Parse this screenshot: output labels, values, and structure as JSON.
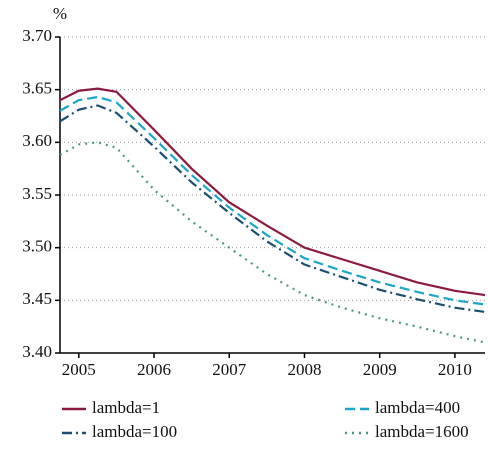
{
  "chart_data": {
    "type": "line",
    "y_label": "%",
    "x": [
      2004.75,
      2005,
      2005.25,
      2005.5,
      2006,
      2006.5,
      2007,
      2007.5,
      2008,
      2008.5,
      2009,
      2009.5,
      2010,
      2010.4
    ],
    "series": [
      {
        "name": "lambda=1",
        "color": "#8b1a3e",
        "dash": "solid",
        "values": [
          3.64,
          3.649,
          3.651,
          3.648,
          3.612,
          3.575,
          3.543,
          3.521,
          3.5,
          3.489,
          3.478,
          3.467,
          3.459,
          3.455
        ]
      },
      {
        "name": "lambda=400",
        "color": "#1ba6c9",
        "dash": "dash",
        "values": [
          3.63,
          3.64,
          3.643,
          3.638,
          3.604,
          3.569,
          3.538,
          3.512,
          3.49,
          3.478,
          3.467,
          3.458,
          3.45,
          3.446
        ]
      },
      {
        "name": "lambda=100",
        "color": "#1a4f70",
        "dash": "dashdot",
        "values": [
          3.62,
          3.631,
          3.635,
          3.628,
          3.596,
          3.562,
          3.533,
          3.506,
          3.484,
          3.472,
          3.46,
          3.451,
          3.443,
          3.439
        ]
      },
      {
        "name": "lambda=1600",
        "color": "#4a9a7c",
        "dash": "dot",
        "values": [
          3.588,
          3.598,
          3.6,
          3.595,
          3.555,
          3.525,
          3.5,
          3.475,
          3.455,
          3.443,
          3.433,
          3.425,
          3.416,
          3.41
        ]
      }
    ],
    "xlim": [
      2004.75,
      2010.4
    ],
    "xticks": [
      2005,
      2006,
      2007,
      2008,
      2009,
      2010
    ],
    "ylim": [
      3.4,
      3.7
    ],
    "yticks": [
      {
        "value": 3.4,
        "label": "3.40"
      },
      {
        "value": 3.45,
        "label": "3.45"
      },
      {
        "value": 3.5,
        "label": "3.50"
      },
      {
        "value": 3.55,
        "label": "3.55"
      },
      {
        "value": 3.6,
        "label": "3.60"
      },
      {
        "value": 3.65,
        "label": "3.65"
      },
      {
        "value": 3.7,
        "label": "3.70"
      }
    ],
    "grid": true
  }
}
